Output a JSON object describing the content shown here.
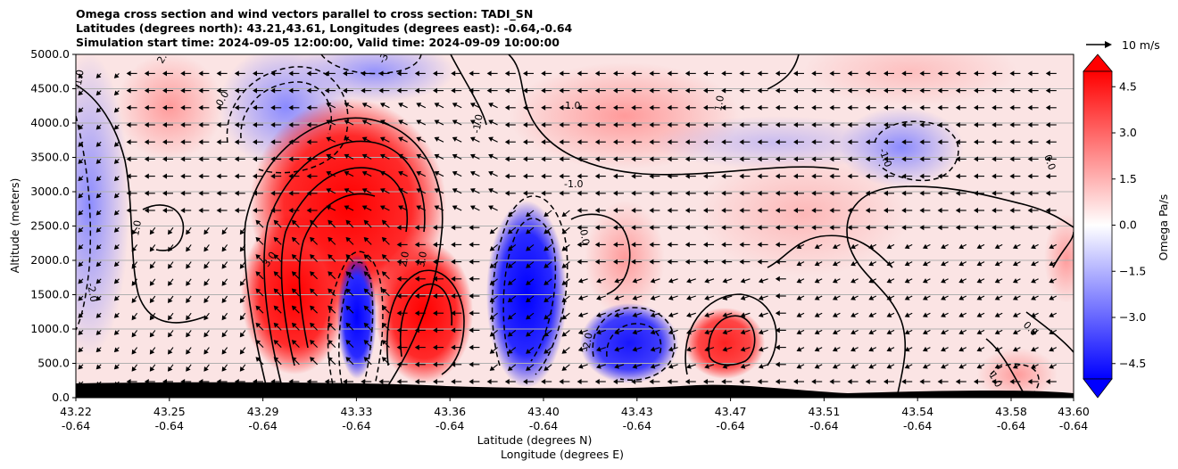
{
  "chart_data": {
    "type": "heatmap",
    "title_lines": [
      "Omega cross section and wind vectors parallel to cross section: TADI_SN",
      "Latitudes (degrees north): 43.21,43.61, Longitudes (degrees east): -0.64,-0.64",
      "Simulation start time: 2024-09-05 12:00:00, Valid time: 2024-09-09 10:00:00"
    ],
    "ylabel": "Altitude (meters)",
    "xlabel_lines": [
      "Latitude (degrees N)",
      "Longitude (degrees E)"
    ],
    "xlim": [
      43.22,
      43.6
    ],
    "ylim": [
      0,
      5000
    ],
    "x_ticks": [
      {
        "lat": "43.22",
        "lon": "-0.64"
      },
      {
        "lat": "43.25",
        "lon": "-0.64"
      },
      {
        "lat": "43.29",
        "lon": "-0.64"
      },
      {
        "lat": "43.33",
        "lon": "-0.64"
      },
      {
        "lat": "43.36",
        "lon": "-0.64"
      },
      {
        "lat": "43.40",
        "lon": "-0.64"
      },
      {
        "lat": "43.43",
        "lon": "-0.64"
      },
      {
        "lat": "43.47",
        "lon": "-0.64"
      },
      {
        "lat": "43.51",
        "lon": "-0.64"
      },
      {
        "lat": "43.54",
        "lon": "-0.64"
      },
      {
        "lat": "43.58",
        "lon": "-0.64"
      },
      {
        "lat": "43.60",
        "lon": "-0.64"
      }
    ],
    "y_ticks": [
      "0.0",
      "500.0",
      "1000.0",
      "1500.0",
      "2000.0",
      "2500.0",
      "3000.0",
      "3500.0",
      "4000.0",
      "4500.0",
      "5000.0"
    ],
    "grid": "horizontal",
    "colorbar": {
      "label": "Omega Pa/s",
      "range": [
        -5.0,
        5.0
      ],
      "ticks": [
        "4.5",
        "3.0",
        "1.5",
        "0.0",
        "−1.5",
        "−3.0",
        "−4.5"
      ],
      "colors_low_to_high": [
        "#0000ff",
        "#ffffff",
        "#ff0000"
      ],
      "extend": "both"
    },
    "quiver_key": "10 m/s",
    "wind_direction": "toward lower latitude (left) over most of the section",
    "features": [
      {
        "kind": "updraft-core",
        "lat_range": [
          43.29,
          43.33
        ],
        "alt_range": [
          500,
          3000
        ],
        "omega": 5.0
      },
      {
        "kind": "updraft-core",
        "lat_range": [
          43.34,
          43.37
        ],
        "alt_range": [
          500,
          1700
        ],
        "omega": 5.0
      },
      {
        "kind": "downdraft-core",
        "lat_range": [
          43.325,
          43.34
        ],
        "alt_range": [
          400,
          1900
        ],
        "omega": -5.0
      },
      {
        "kind": "downdraft-core",
        "lat_range": [
          43.38,
          43.4
        ],
        "alt_range": [
          400,
          2000
        ],
        "omega": -5.0
      },
      {
        "kind": "downdraft",
        "lat_range": [
          43.42,
          43.45
        ],
        "alt_range": [
          400,
          1100
        ],
        "omega": -4.0
      },
      {
        "kind": "updraft",
        "lat_range": [
          43.465,
          43.49
        ],
        "alt_range": [
          600,
          1200
        ],
        "omega": 3.0
      },
      {
        "kind": "downdraft",
        "lat_range": [
          43.26,
          43.3
        ],
        "alt_range": [
          3000,
          5000
        ],
        "omega": -2.5
      },
      {
        "kind": "downdraft",
        "lat_range": [
          43.54,
          43.56
        ],
        "alt_range": [
          3000,
          4000
        ],
        "omega": -1.5
      }
    ],
    "contour_labels": [
      "2.0",
      "3.0",
      "1.0",
      "0.0",
      "-1.0",
      "-2.0",
      "-3.0",
      "1.0",
      "-1.0",
      "2.0",
      "3.0",
      "0.0",
      "1.0",
      "-1.0",
      "-2.0",
      "0.0",
      "1.0",
      "-1.0",
      "0.0"
    ]
  }
}
